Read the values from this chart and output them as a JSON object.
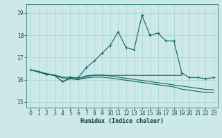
{
  "xlabel": "Humidex (Indice chaleur)",
  "bg_color": "#cce8e8",
  "grid_color": "#aad0d0",
  "line_color": "#1a6b6b",
  "xlim": [
    -0.5,
    23.5
  ],
  "ylim": [
    14.75,
    19.4
  ],
  "yticks": [
    15,
    16,
    17,
    18,
    19
  ],
  "xticks": [
    0,
    1,
    2,
    3,
    4,
    5,
    6,
    7,
    8,
    9,
    10,
    11,
    12,
    13,
    14,
    15,
    16,
    17,
    18,
    19,
    20,
    21,
    22,
    23
  ],
  "line1_x": [
    0,
    1,
    2,
    3,
    4,
    5,
    6,
    7,
    8,
    9,
    10,
    11,
    12,
    13,
    14,
    15,
    16,
    17,
    18,
    19,
    20,
    21,
    22,
    23
  ],
  "line1_y": [
    16.45,
    16.35,
    16.25,
    16.2,
    15.92,
    16.1,
    16.1,
    16.55,
    16.85,
    17.2,
    17.55,
    18.15,
    17.45,
    17.35,
    18.9,
    18.0,
    18.1,
    17.75,
    17.75,
    16.3,
    16.1,
    16.1,
    16.05,
    16.1
  ],
  "line2_x": [
    0,
    1,
    2,
    3,
    4,
    5,
    6,
    7,
    8,
    9,
    10,
    11,
    12,
    13,
    14,
    15,
    16,
    17,
    18,
    19
  ],
  "line2_y": [
    16.45,
    16.35,
    16.25,
    16.2,
    15.92,
    16.05,
    16.0,
    16.15,
    16.2,
    16.2,
    16.2,
    16.2,
    16.2,
    16.2,
    16.2,
    16.2,
    16.2,
    16.2,
    16.2,
    16.2
  ],
  "line3_x": [
    0,
    1,
    2,
    3,
    4,
    5,
    6,
    7,
    8,
    9,
    10,
    11,
    12,
    13,
    14,
    15,
    16,
    17,
    18,
    19,
    20,
    21,
    22,
    23
  ],
  "line3_y": [
    16.45,
    16.38,
    16.28,
    16.22,
    16.12,
    16.12,
    16.07,
    16.18,
    16.22,
    16.22,
    16.17,
    16.12,
    16.07,
    16.02,
    15.97,
    15.92,
    15.87,
    15.82,
    15.77,
    15.72,
    15.67,
    15.62,
    15.57,
    15.55
  ],
  "line4_x": [
    0,
    1,
    2,
    3,
    4,
    5,
    6,
    7,
    8,
    9,
    10,
    11,
    12,
    13,
    14,
    15,
    16,
    17,
    18,
    19,
    20,
    21,
    22,
    23
  ],
  "line4_y": [
    16.45,
    16.35,
    16.25,
    16.2,
    16.08,
    16.08,
    16.02,
    16.08,
    16.12,
    16.12,
    16.08,
    16.03,
    15.98,
    15.93,
    15.88,
    15.83,
    15.78,
    15.73,
    15.68,
    15.58,
    15.53,
    15.48,
    15.43,
    15.42
  ]
}
